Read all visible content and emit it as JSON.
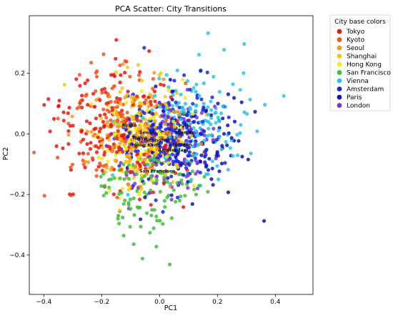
{
  "chart_data": {
    "type": "scatter",
    "title": "PCA Scatter: City Transitions",
    "xlabel": "PC1",
    "ylabel": "PC2",
    "xlim": [
      -0.45,
      0.53
    ],
    "ylim": [
      -0.53,
      0.39
    ],
    "xticks": [
      -0.4,
      -0.2,
      0.0,
      0.2,
      0.4
    ],
    "xtick_labels": [
      "−0.4",
      "−0.2",
      "0.0",
      "0.2",
      "0.4"
    ],
    "yticks": [
      -0.4,
      -0.2,
      0.0,
      0.2
    ],
    "ytick_labels": [
      "−0.4",
      "−0.2",
      "0.0",
      "0.2"
    ],
    "grid": false,
    "legend": {
      "title": "City base colors",
      "placement": "outside-right-top"
    },
    "series": [
      {
        "name": "Tokyo",
        "color": "#e8170f",
        "center": [
          -0.15,
          0.02
        ],
        "spread": [
          0.1,
          0.1
        ],
        "count": 190,
        "seed": 11
      },
      {
        "name": "Kyoto",
        "color": "#f0561a",
        "center": [
          -0.14,
          0.02
        ],
        "spread": [
          0.1,
          0.1
        ],
        "count": 110,
        "seed": 23
      },
      {
        "name": "Seoul",
        "color": "#f3981f",
        "center": [
          -0.08,
          0.0
        ],
        "spread": [
          0.08,
          0.09
        ],
        "count": 130,
        "seed": 37
      },
      {
        "name": "Shanghai",
        "color": "#f6c515",
        "center": [
          -0.06,
          -0.01
        ],
        "spread": [
          0.08,
          0.09
        ],
        "count": 150,
        "seed": 41
      },
      {
        "name": "Hong Kong",
        "color": "#f1ee13",
        "center": [
          -0.05,
          -0.04
        ],
        "spread": [
          0.08,
          0.08
        ],
        "count": 110,
        "seed": 53
      },
      {
        "name": "San Francisco",
        "color": "#3fbf3a",
        "center": [
          -0.03,
          -0.17
        ],
        "spread": [
          0.08,
          0.09
        ],
        "count": 120,
        "seed": 67
      },
      {
        "name": "Vienna",
        "color": "#2bc4e6",
        "center": [
          0.14,
          0.04
        ],
        "spread": [
          0.1,
          0.1
        ],
        "count": 150,
        "seed": 71
      },
      {
        "name": "Amsterdam",
        "color": "#1b27e0",
        "center": [
          0.04,
          0.0
        ],
        "spread": [
          0.08,
          0.09
        ],
        "count": 180,
        "seed": 83
      },
      {
        "name": "Paris",
        "color": "#0e14b4",
        "center": [
          0.09,
          -0.03
        ],
        "spread": [
          0.1,
          0.1
        ],
        "count": 130,
        "seed": 97
      },
      {
        "name": "London",
        "color": "#7a35d8",
        "center": [
          0.05,
          -0.06
        ],
        "spread": [
          0.08,
          0.08
        ],
        "count": 110,
        "seed": 101
      }
    ],
    "annotations": [
      {
        "text": "Kyoto",
        "x": -0.13,
        "y": 0.024
      },
      {
        "text": "Paris",
        "x": 0.065,
        "y": 0.022
      },
      {
        "text": "Seoul",
        "x": -0.07,
        "y": 0.0
      },
      {
        "text": "Vienna",
        "x": 0.055,
        "y": 0.0
      },
      {
        "text": "Tokyo",
        "x": -0.095,
        "y": -0.018
      },
      {
        "text": "Shanghai",
        "x": -0.05,
        "y": -0.026
      },
      {
        "text": "Hong Kong",
        "x": -0.095,
        "y": -0.042
      },
      {
        "text": "London",
        "x": 0.045,
        "y": -0.04
      },
      {
        "text": "Amsterdam",
        "x": -0.005,
        "y": -0.058
      },
      {
        "text": "San Francisco",
        "x": -0.07,
        "y": -0.128
      }
    ]
  }
}
